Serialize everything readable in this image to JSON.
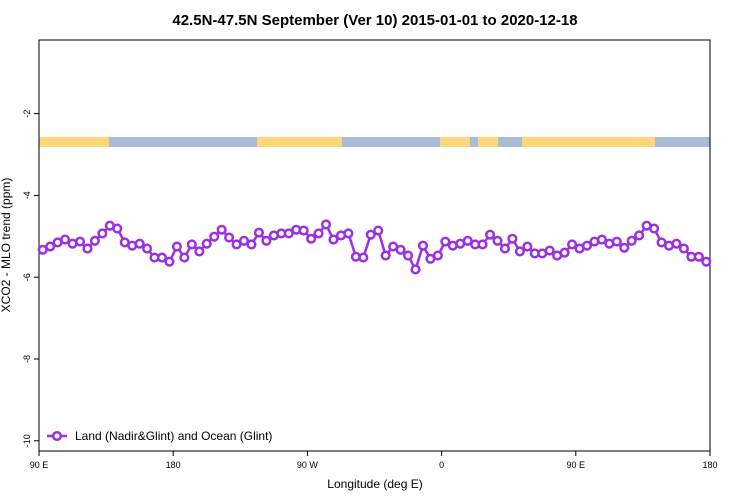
{
  "chart_data": {
    "type": "line",
    "title": "42.5N-47.5N September (Ver 10)   2015-01-01 to 2020-12-18",
    "x_label": "Longitude (deg E)",
    "y_label": "XCO2 - MLO trend (ppm)",
    "xlim": [
      90,
      540
    ],
    "xticks": [
      {
        "value": 90,
        "label": "90 E"
      },
      {
        "value": 180,
        "label": "180"
      },
      {
        "value": 270,
        "label": "90 W"
      },
      {
        "value": 360,
        "label": "0"
      },
      {
        "value": 450,
        "label": "90 E"
      },
      {
        "value": 540,
        "label": "180"
      }
    ],
    "ylim": [
      -10.25,
      -0.2
    ],
    "yticks": [
      -10,
      -8,
      -6,
      -4,
      -2
    ],
    "legend": "bottomleft",
    "x": [
      92.5,
      97.5,
      102.5,
      107.5,
      112.5,
      117.5,
      122.5,
      127.5,
      132.5,
      137.5,
      142.5,
      147.5,
      152.5,
      157.5,
      162.5,
      167.5,
      172.5,
      177.5,
      182.5,
      187.5,
      192.5,
      197.5,
      202.5,
      207.5,
      212.5,
      217.5,
      222.5,
      227.5,
      232.5,
      237.5,
      242.5,
      247.5,
      252.5,
      257.5,
      262.5,
      267.5,
      272.5,
      277.5,
      282.5,
      287.5,
      292.5,
      297.5,
      302.5,
      307.5,
      312.5,
      317.5,
      322.5,
      327.5,
      332.5,
      337.5,
      342.5,
      347.5,
      352.5,
      357.5,
      362.5,
      367.5,
      372.5,
      377.5,
      382.5,
      387.5,
      392.5,
      397.5,
      402.5,
      407.5,
      412.5,
      417.5,
      422.5,
      427.5,
      432.5,
      437.5,
      442.5,
      447.5,
      452.5,
      457.5,
      462.5,
      467.5,
      472.5,
      477.5,
      482.5,
      487.5,
      492.5,
      497.5,
      502.5,
      507.5,
      512.5,
      517.5,
      522.5,
      527.5,
      532.5,
      537.5
    ],
    "series": [
      {
        "name": "Land (Nadir&Glint) and Ocean (Glint)",
        "color": "#9b30e0",
        "values": [
          -5.33,
          -5.25,
          -5.15,
          -5.08,
          -5.18,
          -5.13,
          -5.3,
          -5.11,
          -4.93,
          -4.74,
          -4.81,
          -5.15,
          -5.23,
          -5.18,
          -5.3,
          -5.52,
          -5.52,
          -5.62,
          -5.25,
          -5.52,
          -5.2,
          -5.37,
          -5.18,
          -5.01,
          -4.84,
          -5.03,
          -5.2,
          -5.11,
          -5.2,
          -4.91,
          -5.11,
          -4.98,
          -4.93,
          -4.93,
          -4.84,
          -4.86,
          -5.06,
          -4.93,
          -4.71,
          -5.08,
          -4.98,
          -4.93,
          -5.5,
          -5.52,
          -4.96,
          -4.86,
          -5.47,
          -5.25,
          -5.33,
          -5.47,
          -5.81,
          -5.23,
          -5.55,
          -5.47,
          -5.13,
          -5.23,
          -5.18,
          -5.11,
          -5.2,
          -5.2,
          -4.96,
          -5.11,
          -5.3,
          -5.06,
          -5.37,
          -5.25,
          -5.42,
          -5.42,
          -5.35,
          -5.47,
          -5.4,
          -5.2,
          -5.3,
          -5.23,
          -5.13,
          -5.08,
          -5.18,
          -5.13,
          -5.28,
          -5.11,
          -4.98,
          -4.74,
          -4.81,
          -5.15,
          -5.23,
          -5.18,
          -5.3,
          -5.5,
          -5.5,
          -5.62
        ]
      }
    ]
  }
}
